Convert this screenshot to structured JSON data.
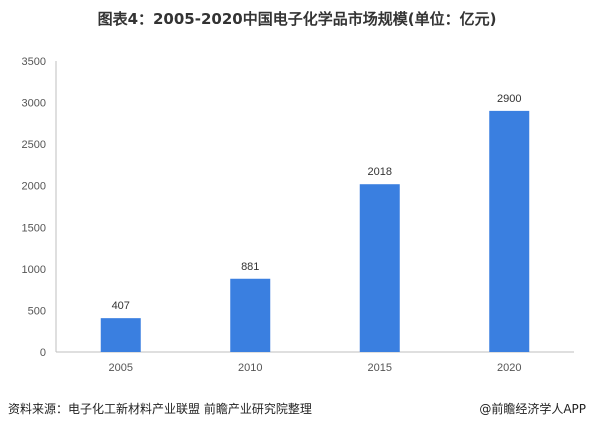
{
  "chart_data": {
    "type": "bar",
    "title": "图表4：2005-2020中国电子化学品市场规模(单位：亿元)",
    "categories": [
      "2005",
      "2010",
      "2015",
      "2020"
    ],
    "values": [
      407,
      881,
      2018,
      2900
    ],
    "data_labels": [
      "407",
      "881",
      "2018",
      "2900"
    ],
    "y_ticks": [
      "0",
      "500",
      "1000",
      "1500",
      "2000",
      "2500",
      "3000",
      "3500"
    ],
    "ylim": [
      0,
      3500
    ],
    "xlabel": "",
    "ylabel": "",
    "grid": false,
    "legend": "none",
    "bar_color": "#3a7fe0"
  },
  "footer": {
    "source": "资料来源：电子化工新材料产业联盟 前瞻产业研究院整理",
    "brand": "@前瞻经济学人APP"
  }
}
